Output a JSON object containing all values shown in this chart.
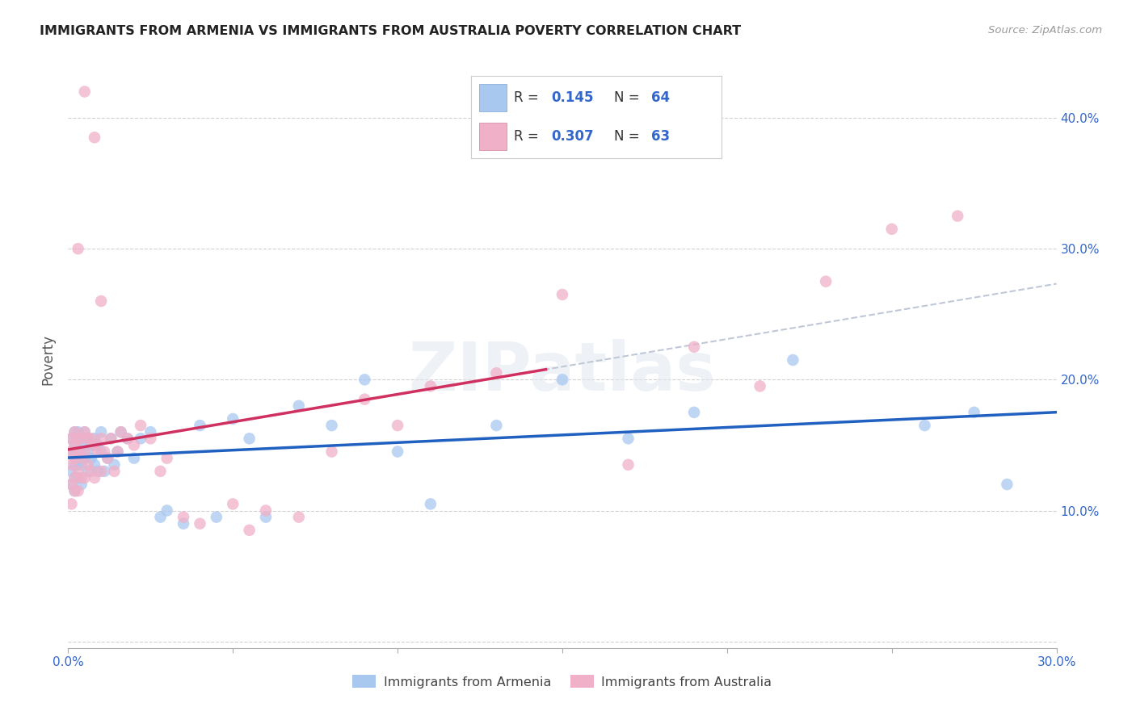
{
  "title": "IMMIGRANTS FROM ARMENIA VS IMMIGRANTS FROM AUSTRALIA POVERTY CORRELATION CHART",
  "source": "Source: ZipAtlas.com",
  "ylabel": "Poverty",
  "xlim": [
    0.0,
    0.3
  ],
  "ylim": [
    -0.005,
    0.435
  ],
  "legend_label1": "Immigrants from Armenia",
  "legend_label2": "Immigrants from Australia",
  "color_armenia": "#a8c8f0",
  "color_australia": "#f0b0c8",
  "color_trendline_armenia": "#2060c0",
  "color_trendline_australia": "#d03060",
  "color_dashed": "#c0c8d8",
  "watermark_text": "ZIPatlas",
  "armenia_x": [
    0.001,
    0.001,
    0.001,
    0.001,
    0.002,
    0.002,
    0.002,
    0.002,
    0.002,
    0.002,
    0.003,
    0.003,
    0.003,
    0.003,
    0.003,
    0.004,
    0.004,
    0.004,
    0.004,
    0.005,
    0.005,
    0.005,
    0.006,
    0.006,
    0.006,
    0.007,
    0.007,
    0.008,
    0.008,
    0.009,
    0.009,
    0.01,
    0.01,
    0.011,
    0.012,
    0.013,
    0.014,
    0.015,
    0.016,
    0.018,
    0.02,
    0.022,
    0.025,
    0.028,
    0.03,
    0.035,
    0.04,
    0.045,
    0.05,
    0.055,
    0.06,
    0.07,
    0.08,
    0.09,
    0.1,
    0.11,
    0.13,
    0.15,
    0.17,
    0.19,
    0.22,
    0.26,
    0.275,
    0.285
  ],
  "armenia_y": [
    0.155,
    0.145,
    0.13,
    0.12,
    0.16,
    0.15,
    0.145,
    0.135,
    0.125,
    0.115,
    0.16,
    0.155,
    0.145,
    0.135,
    0.125,
    0.155,
    0.145,
    0.135,
    0.12,
    0.16,
    0.15,
    0.14,
    0.155,
    0.145,
    0.13,
    0.15,
    0.14,
    0.155,
    0.135,
    0.15,
    0.13,
    0.16,
    0.145,
    0.13,
    0.14,
    0.155,
    0.135,
    0.145,
    0.16,
    0.155,
    0.14,
    0.155,
    0.16,
    0.095,
    0.1,
    0.09,
    0.165,
    0.095,
    0.17,
    0.155,
    0.095,
    0.18,
    0.165,
    0.2,
    0.145,
    0.105,
    0.165,
    0.2,
    0.155,
    0.175,
    0.215,
    0.165,
    0.175,
    0.12
  ],
  "australia_x": [
    0.001,
    0.001,
    0.001,
    0.001,
    0.001,
    0.002,
    0.002,
    0.002,
    0.002,
    0.002,
    0.003,
    0.003,
    0.003,
    0.003,
    0.004,
    0.004,
    0.004,
    0.005,
    0.005,
    0.005,
    0.006,
    0.006,
    0.007,
    0.007,
    0.008,
    0.008,
    0.009,
    0.01,
    0.01,
    0.011,
    0.012,
    0.013,
    0.014,
    0.015,
    0.016,
    0.018,
    0.02,
    0.022,
    0.025,
    0.028,
    0.03,
    0.035,
    0.04,
    0.05,
    0.055,
    0.06,
    0.07,
    0.08,
    0.09,
    0.1,
    0.11,
    0.13,
    0.15,
    0.17,
    0.19,
    0.21,
    0.23,
    0.25,
    0.27,
    0.01,
    0.008,
    0.005,
    0.003
  ],
  "australia_y": [
    0.155,
    0.145,
    0.135,
    0.12,
    0.105,
    0.16,
    0.15,
    0.14,
    0.125,
    0.115,
    0.155,
    0.145,
    0.13,
    0.115,
    0.155,
    0.14,
    0.125,
    0.16,
    0.145,
    0.125,
    0.155,
    0.135,
    0.155,
    0.13,
    0.15,
    0.125,
    0.145,
    0.155,
    0.13,
    0.145,
    0.14,
    0.155,
    0.13,
    0.145,
    0.16,
    0.155,
    0.15,
    0.165,
    0.155,
    0.13,
    0.14,
    0.095,
    0.09,
    0.105,
    0.085,
    0.1,
    0.095,
    0.145,
    0.185,
    0.165,
    0.195,
    0.205,
    0.265,
    0.135,
    0.225,
    0.195,
    0.275,
    0.315,
    0.325,
    0.26,
    0.385,
    0.42,
    0.3
  ]
}
